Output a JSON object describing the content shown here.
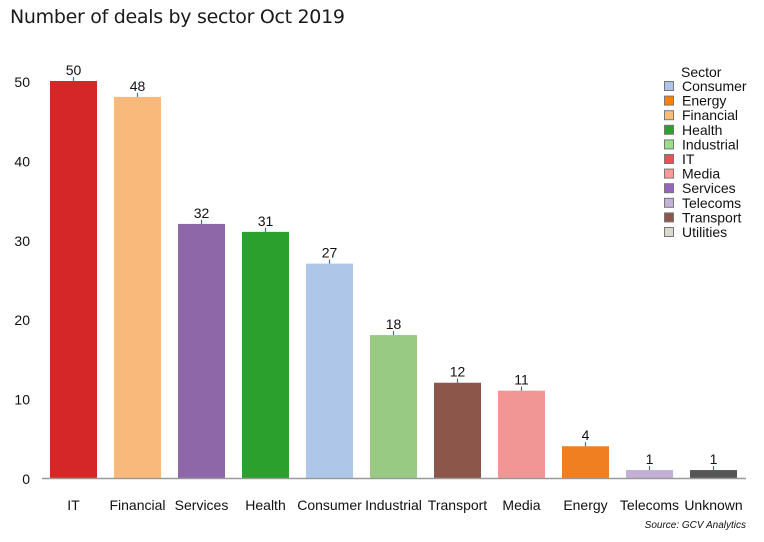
{
  "chart_data": {
    "type": "bar",
    "title": "Number of deals by sector Oct 2019",
    "source": "Source: GCV Analytics",
    "categories": [
      "IT",
      "Financial",
      "Services",
      "Health",
      "Consumer",
      "Industrial",
      "Transport",
      "Media",
      "Energy",
      "Telecoms",
      "Unknown"
    ],
    "values": [
      50,
      48,
      32,
      31,
      27,
      18,
      12,
      11,
      4,
      1,
      1
    ],
    "bar_colors": [
      "#d62728",
      "#f9b97a",
      "#8e67a8",
      "#2ca02c",
      "#aec7e8",
      "#98ca84",
      "#8c564b",
      "#f29595",
      "#f07f21",
      "#c5b0d5",
      "#555555"
    ],
    "ylim": [
      0,
      50
    ],
    "yticks": [
      0,
      10,
      20,
      30,
      40,
      50
    ],
    "xlabel": "",
    "ylabel": "",
    "grid": false,
    "legend": {
      "title": "Sector",
      "placement": "top-right",
      "items": [
        {
          "label": "Consumer",
          "color": "#aec7e8"
        },
        {
          "label": "Energy",
          "color": "#ff7f0e"
        },
        {
          "label": "Financial",
          "color": "#ffbb78"
        },
        {
          "label": "Health",
          "color": "#2ca02c"
        },
        {
          "label": "Industrial",
          "color": "#98df8a"
        },
        {
          "label": "IT",
          "color": "#e05555"
        },
        {
          "label": "Media",
          "color": "#ff9896"
        },
        {
          "label": "Services",
          "color": "#9467bd"
        },
        {
          "label": "Telecoms",
          "color": "#c5b0d5"
        },
        {
          "label": "Transport",
          "color": "#8c564b"
        },
        {
          "label": "Utilities",
          "color": "#ddd8cc"
        }
      ]
    }
  }
}
